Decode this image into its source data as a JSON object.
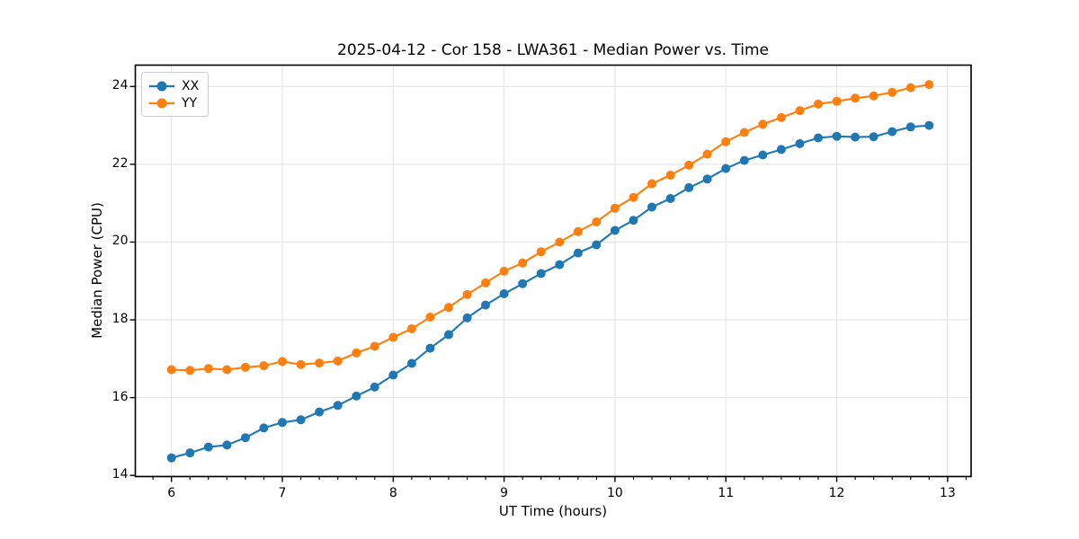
{
  "chart_data": {
    "type": "line",
    "title": "2025-04-12 - Cor 158 - LWA361 - Median Power vs. Time",
    "xlabel": "UT Time (hours)",
    "ylabel": "Median Power (CPU)",
    "xlim": [
      5.674,
      13.212
    ],
    "ylim": [
      13.97,
      24.55
    ],
    "xticks": [
      6,
      7,
      8,
      9,
      10,
      11,
      12,
      13
    ],
    "yticks": [
      14,
      16,
      18,
      20,
      22,
      24
    ],
    "minor_xtick_step": 0.16667,
    "grid": true,
    "legend_position": "upper-left",
    "x": [
      6.0,
      6.167,
      6.333,
      6.5,
      6.667,
      6.833,
      7.0,
      7.167,
      7.333,
      7.5,
      7.667,
      7.833,
      8.0,
      8.167,
      8.333,
      8.5,
      8.667,
      8.833,
      9.0,
      9.167,
      9.333,
      9.5,
      9.667,
      9.833,
      10.0,
      10.167,
      10.333,
      10.5,
      10.667,
      10.833,
      11.0,
      11.167,
      11.333,
      11.5,
      11.667,
      11.833,
      12.0,
      12.167,
      12.333,
      12.5,
      12.667,
      12.833
    ],
    "series": [
      {
        "name": "XX",
        "color": "#1f77b4",
        "values": [
          14.45,
          14.58,
          14.73,
          14.78,
          14.97,
          15.22,
          15.36,
          15.43,
          15.63,
          15.8,
          16.04,
          16.27,
          16.58,
          16.88,
          17.27,
          17.62,
          18.05,
          18.38,
          18.67,
          18.93,
          19.19,
          19.42,
          19.72,
          19.93,
          20.3,
          20.56,
          20.9,
          21.12,
          21.4,
          21.62,
          21.89,
          22.1,
          22.24,
          22.38,
          22.53,
          22.68,
          22.72,
          22.7,
          22.71,
          22.84,
          22.96,
          23.0
        ]
      },
      {
        "name": "YY",
        "color": "#ff7f0e",
        "values": [
          16.72,
          16.7,
          16.75,
          16.72,
          16.78,
          16.82,
          16.93,
          16.85,
          16.89,
          16.94,
          17.15,
          17.32,
          17.55,
          17.77,
          18.07,
          18.32,
          18.65,
          18.95,
          19.25,
          19.46,
          19.75,
          20.0,
          20.27,
          20.52,
          20.87,
          21.15,
          21.5,
          21.72,
          21.98,
          22.26,
          22.58,
          22.82,
          23.03,
          23.2,
          23.38,
          23.55,
          23.62,
          23.7,
          23.76,
          23.85,
          23.97,
          24.05
        ]
      }
    ]
  },
  "style": {
    "grid_color": "#e2e2e2",
    "spine_color": "#000000",
    "tick_color": "#000000",
    "background": "#ffffff"
  }
}
